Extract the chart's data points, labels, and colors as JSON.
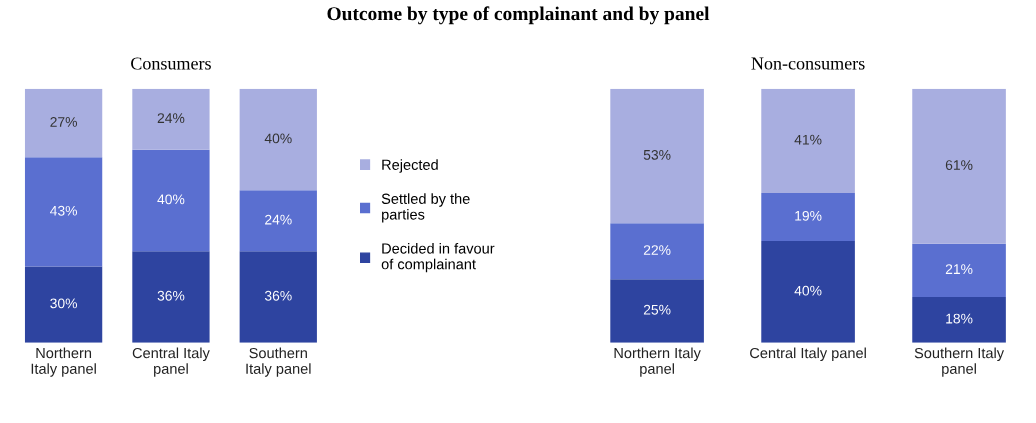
{
  "chart_data": [
    {
      "type": "bar",
      "title": "Outcome by type of complainant and by panel",
      "subtitle": "Consumers",
      "stacked": true,
      "data_labels": true,
      "legend": "right",
      "tick_labels": "x",
      "grid": false,
      "categories": [
        "Northern\nItaly panel",
        "Central Italy\npanel",
        "Southern\nItaly panel"
      ],
      "series": [
        {
          "name": "Decided in favour\nof complainant",
          "color": "#2e44a0",
          "values": [
            30,
            36,
            36
          ],
          "value_labels": [
            "30%",
            "36%",
            "36%"
          ]
        },
        {
          "name": "Settled by the\nparties",
          "color": "#5a6fd0",
          "values": [
            43,
            40,
            24
          ],
          "value_labels": [
            "43%",
            "40%",
            "24%"
          ]
        },
        {
          "name": "Rejected",
          "color": "#a8aee0",
          "values": [
            27,
            24,
            40
          ],
          "value_labels": [
            "27%",
            "24%",
            "40%"
          ]
        }
      ]
    },
    {
      "type": "bar",
      "subtitle": "Non-consumers",
      "stacked": true,
      "data_labels": true,
      "legend": false,
      "tick_labels": "x",
      "grid": false,
      "categories": [
        "Northern Italy\npanel",
        "Central Italy panel",
        "Southern Italy\npanel"
      ],
      "series": [
        {
          "color": "#2e44a0",
          "values": [
            25,
            40,
            18
          ],
          "value_labels": [
            "25%",
            "40%",
            "18%"
          ]
        },
        {
          "color": "#5a6fd0",
          "values": [
            22,
            19,
            21
          ],
          "value_labels": [
            "22%",
            "19%",
            "21%"
          ]
        },
        {
          "color": "#a8aee0",
          "values": [
            53,
            41,
            61
          ],
          "value_labels": [
            "53%",
            "41%",
            "61%"
          ]
        }
      ]
    }
  ]
}
